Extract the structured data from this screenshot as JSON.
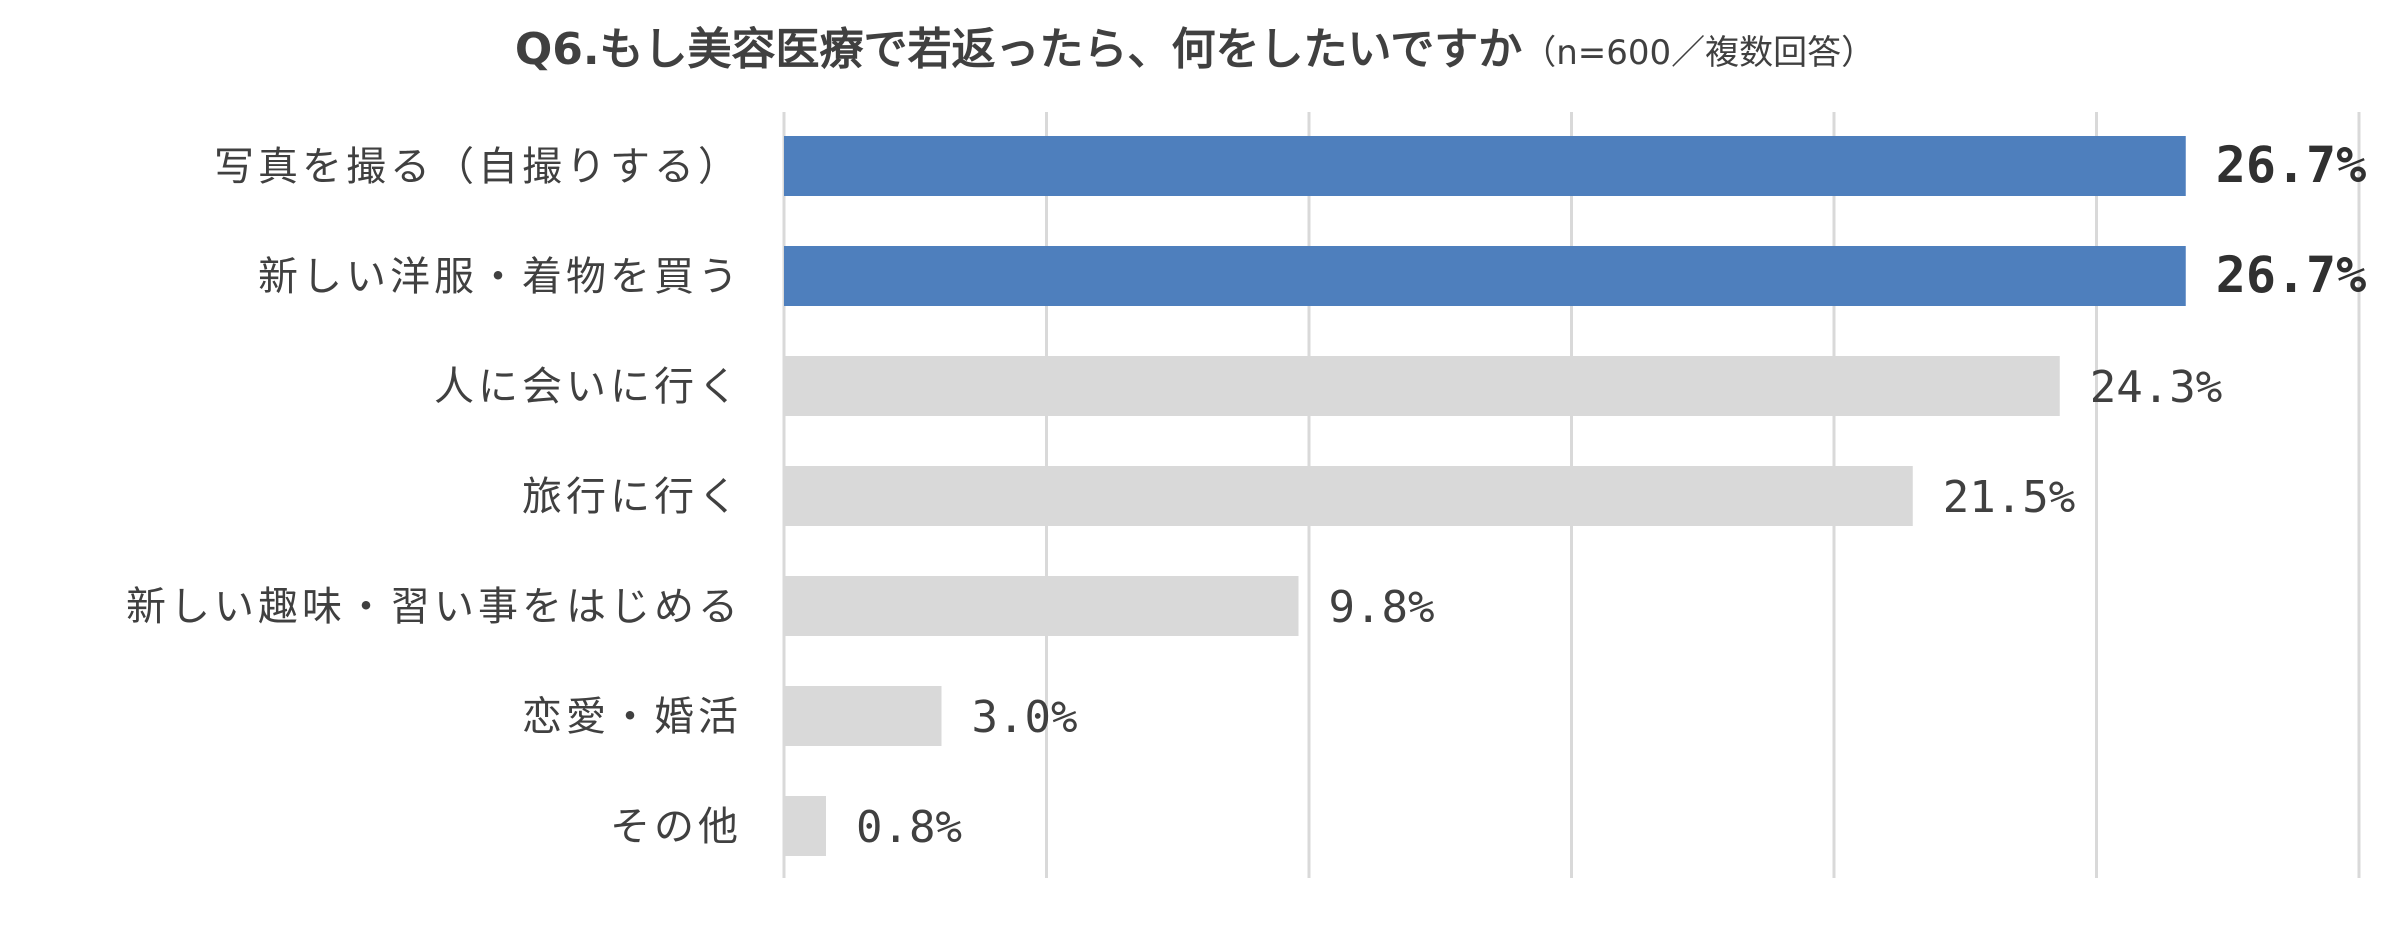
{
  "chart_data": {
    "type": "bar",
    "orientation": "horizontal",
    "title": "Q6.もし美容医療で若返ったら、何をしたいですか",
    "subtitle": "（n=600／複数回答）",
    "categories": [
      "写真を撮る（自撮りする）",
      "新しい洋服・着物を買う",
      "人に会いに行く",
      "旅行に行く",
      "新しい趣味・習い事をはじめる",
      "恋愛・婚活",
      "その他"
    ],
    "values": [
      26.7,
      26.7,
      24.3,
      21.5,
      9.8,
      3.0,
      0.8
    ],
    "value_labels": [
      "26.7%",
      "26.7%",
      "24.3%",
      "21.5%",
      "9.8%",
      "3.0%",
      "0.8%"
    ],
    "highlighted": [
      true,
      true,
      false,
      false,
      false,
      false,
      false
    ],
    "xlim": [
      0,
      30
    ],
    "grid": true,
    "grid_step": 5,
    "legend": "none",
    "colors": {
      "highlight": "#4e7fbd",
      "normal": "#d9d9d9",
      "grid": "#d9d9d9",
      "text": "#404040"
    }
  }
}
